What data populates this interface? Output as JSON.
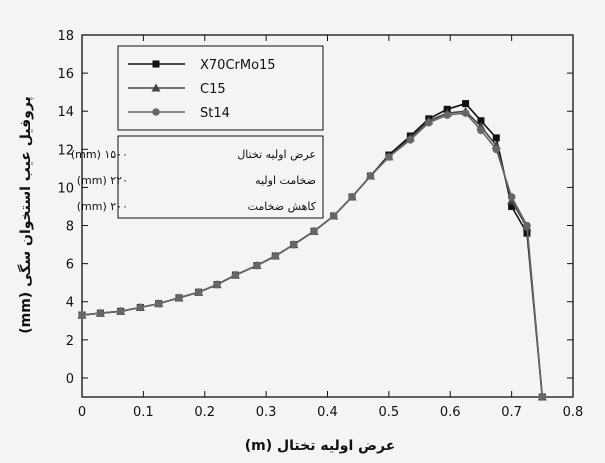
{
  "chart_data": {
    "type": "line",
    "title": "",
    "xlabel": "عرض اولیه تختال (m)",
    "ylabel": "پروفیل عیب استخوان سگی (mm)",
    "xlim": [
      0,
      0.8
    ],
    "ylim": [
      -1,
      18
    ],
    "x_ticks": [
      "0",
      "0.1",
      "0.2",
      "0.3",
      "0.4",
      "0.5",
      "0.6",
      "0.7",
      "0.8"
    ],
    "y_ticks": [
      "0",
      "2",
      "4",
      "6",
      "8",
      "10",
      "12",
      "14",
      "16",
      "18"
    ],
    "grid": false,
    "legend_position": "top-left",
    "x": [
      0,
      0.03,
      0.063,
      0.095,
      0.125,
      0.158,
      0.19,
      0.22,
      0.25,
      0.285,
      0.315,
      0.345,
      0.378,
      0.41,
      0.44,
      0.47,
      0.5,
      0.535,
      0.565,
      0.595,
      0.625,
      0.65,
      0.675,
      0.7,
      0.725,
      0.75
    ],
    "series": [
      {
        "name": "X70CrMo15",
        "marker": "square",
        "color": "#111111",
        "values": [
          3.3,
          3.4,
          3.5,
          3.7,
          3.9,
          4.2,
          4.5,
          4.9,
          5.4,
          5.9,
          6.4,
          7.0,
          7.7,
          8.5,
          9.5,
          10.6,
          11.7,
          12.7,
          13.6,
          14.1,
          14.4,
          13.5,
          12.6,
          9.0,
          7.6,
          -1.0
        ]
      },
      {
        "name": "C15",
        "marker": "triangle",
        "color": "#444444",
        "values": [
          3.3,
          3.4,
          3.5,
          3.7,
          3.9,
          4.2,
          4.5,
          4.9,
          5.4,
          5.9,
          6.4,
          7.0,
          7.7,
          8.5,
          9.5,
          10.6,
          11.6,
          12.6,
          13.5,
          13.9,
          14.0,
          13.2,
          12.2,
          9.3,
          7.9,
          -1.0
        ]
      },
      {
        "name": "St14",
        "marker": "circle",
        "color": "#666666",
        "values": [
          3.3,
          3.4,
          3.5,
          3.7,
          3.9,
          4.2,
          4.5,
          4.9,
          5.4,
          5.9,
          6.4,
          7.0,
          7.7,
          8.5,
          9.5,
          10.6,
          11.6,
          12.5,
          13.4,
          13.8,
          13.9,
          13.0,
          12.0,
          9.5,
          8.0,
          -1.0
        ]
      }
    ],
    "info_box": [
      {
        "label": "عرض اولیه تختال",
        "value": "۱۵۰۰ (mm)"
      },
      {
        "label": "ضخامت اولیه",
        "value": "۲۲۰ (mm)"
      },
      {
        "label": "کاهش ضخامت",
        "value": "۲۰۰ (mm)"
      }
    ]
  }
}
